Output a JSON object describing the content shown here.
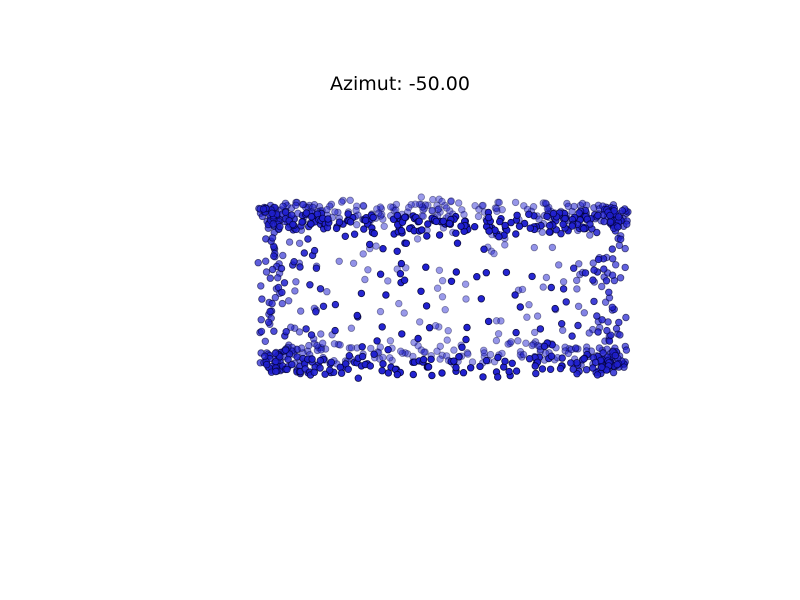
{
  "chart_data": {
    "type": "scatter",
    "title": "Azimut: -50.00",
    "xlabel": "",
    "ylabel": "",
    "zlabel": "",
    "view": {
      "azimuth": -50.0,
      "projection": "3d"
    },
    "axis_visible": false,
    "grid": false,
    "legend": "none",
    "series": [
      {
        "marker_color": "#1a1ad6",
        "edge_color": "#000040"
      }
    ],
    "note": ""
  },
  "colors": {
    "background": "#ffffff",
    "point_fill": "#2020d0",
    "point_edge": "#000033",
    "title_text": "#000000"
  }
}
